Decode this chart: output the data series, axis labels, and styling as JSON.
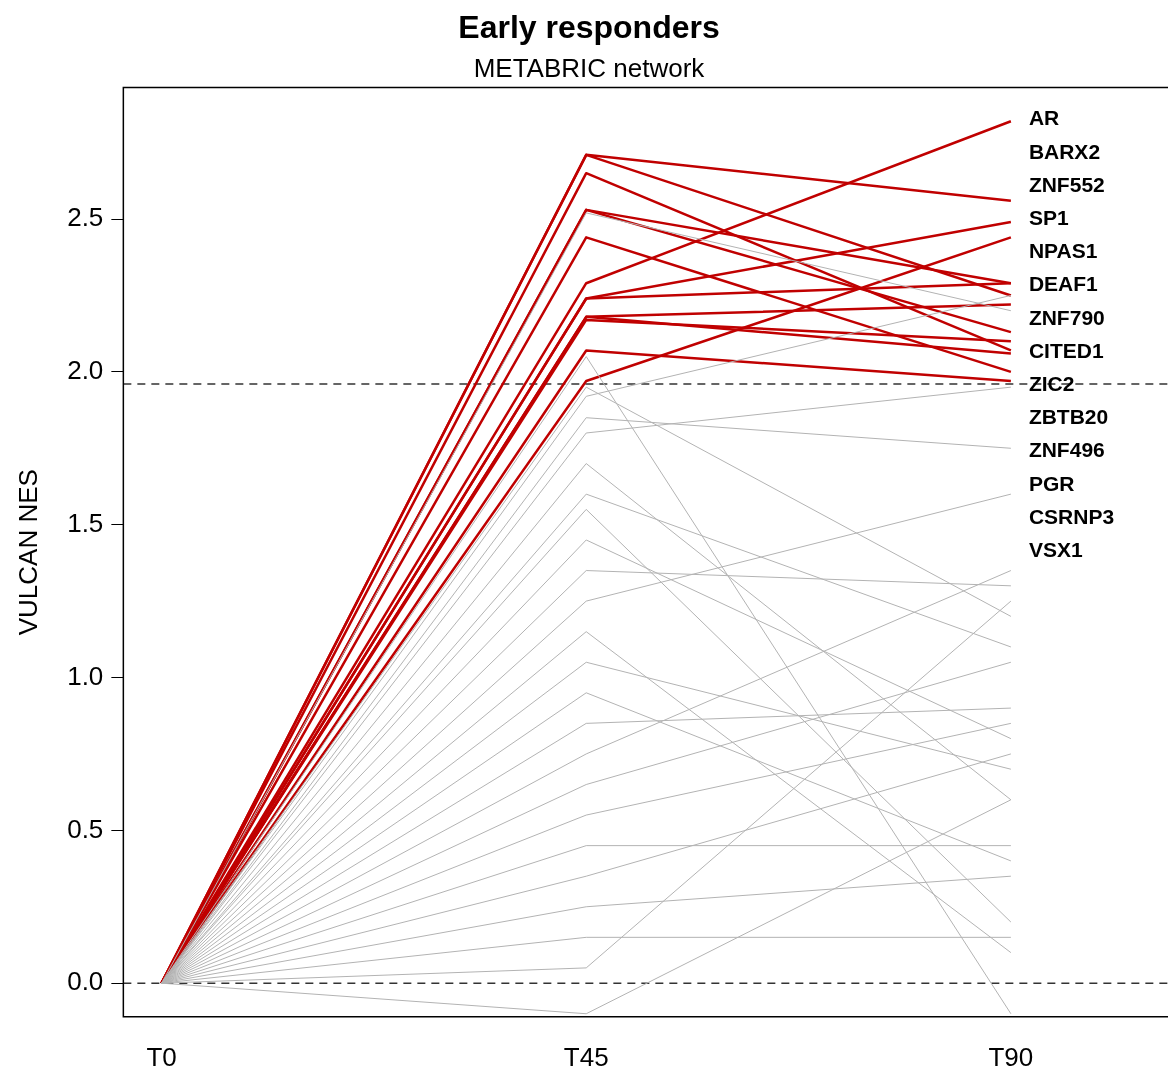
{
  "chart_data": {
    "type": "line",
    "title": "Early responders",
    "subtitle": "METABRIC network",
    "ylabel": "VULCAN NES",
    "categories": [
      "T0",
      "T45",
      "T90"
    ],
    "ylim": [
      -0.11,
      2.93
    ],
    "yticks": [
      {
        "value": 0,
        "label": "0.0"
      },
      0.5,
      {
        "value": 1,
        "label": "1.0"
      },
      1.5,
      {
        "value": 2,
        "label": "2.0"
      },
      2.5
    ],
    "grid": false,
    "marker": "none",
    "line_style": "solid",
    "ref_lines": [
      {
        "axis": "y",
        "value": 1.96,
        "color": "#333333",
        "line_style": "dashed"
      },
      {
        "axis": "y",
        "value": 0,
        "color": "#333333",
        "line_style": "dashed"
      }
    ],
    "annotations": [
      "AR",
      "BARX2",
      "ZNF552",
      "SP1",
      "NPAS1",
      "DEAF1",
      "ZNF790",
      "CITED1",
      "ZIC2",
      "ZBTB20",
      "ZNF496",
      "PGR",
      "CSRNP3",
      "VSX1"
    ],
    "series": [
      {
        "color": "#b3b3b3",
        "values": [
          0,
          1.95,
          1.2
        ]
      },
      {
        "color": "#b3b3b3",
        "values": [
          0,
          1.92,
          2.25
        ]
      },
      {
        "color": "#b3b3b3",
        "values": [
          0,
          1.85,
          1.75
        ]
      },
      {
        "color": "#b3b3b3",
        "values": [
          0,
          1.8,
          1.95
        ]
      },
      {
        "color": "#b3b3b3",
        "values": [
          0,
          1.7,
          0.6
        ]
      },
      {
        "color": "#b3b3b3",
        "values": [
          0,
          1.6,
          1.1
        ]
      },
      {
        "color": "#b3b3b3",
        "values": [
          0,
          1.55,
          0.2
        ]
      },
      {
        "color": "#b3b3b3",
        "values": [
          0,
          1.45,
          0.8
        ]
      },
      {
        "color": "#b3b3b3",
        "values": [
          0,
          1.35,
          1.3
        ]
      },
      {
        "color": "#b3b3b3",
        "values": [
          0,
          1.25,
          1.6
        ]
      },
      {
        "color": "#b3b3b3",
        "values": [
          0,
          1.15,
          0.1
        ]
      },
      {
        "color": "#b3b3b3",
        "values": [
          0,
          1.05,
          0.7
        ]
      },
      {
        "color": "#b3b3b3",
        "values": [
          0,
          0.95,
          0.4
        ]
      },
      {
        "color": "#b3b3b3",
        "values": [
          0,
          0.85,
          0.9
        ]
      },
      {
        "color": "#b3b3b3",
        "values": [
          0,
          0.75,
          1.35
        ]
      },
      {
        "color": "#b3b3b3",
        "values": [
          0,
          0.65,
          1.05
        ]
      },
      {
        "color": "#b3b3b3",
        "values": [
          0,
          0.55,
          0.85
        ]
      },
      {
        "color": "#b3b3b3",
        "values": [
          0,
          0.45,
          0.45
        ]
      },
      {
        "color": "#b3b3b3",
        "values": [
          0,
          0.35,
          0.75
        ]
      },
      {
        "color": "#b3b3b3",
        "values": [
          0,
          0.25,
          0.35
        ]
      },
      {
        "color": "#b3b3b3",
        "values": [
          0,
          0.15,
          0.15
        ]
      },
      {
        "color": "#b3b3b3",
        "values": [
          0,
          0.05,
          1.25
        ]
      },
      {
        "color": "#b3b3b3",
        "values": [
          0,
          -0.1,
          0.6
        ]
      },
      {
        "color": "#b3b3b3",
        "values": [
          0,
          2.52,
          2.2
        ]
      },
      {
        "color": "#b3b3b3",
        "values": [
          0,
          2.05,
          -0.1
        ]
      },
      {
        "color": "#c00000",
        "values": [
          0,
          2.71,
          2.56
        ]
      },
      {
        "color": "#c00000",
        "values": [
          0,
          2.71,
          2.25
        ]
      },
      {
        "color": "#c00000",
        "values": [
          0,
          2.65,
          2.07
        ]
      },
      {
        "color": "#c00000",
        "values": [
          0,
          2.53,
          2.29
        ]
      },
      {
        "color": "#c00000",
        "values": [
          0,
          2.53,
          2.13
        ]
      },
      {
        "color": "#c00000",
        "values": [
          0,
          2.44,
          2.0
        ]
      },
      {
        "color": "#c00000",
        "values": [
          0,
          2.29,
          2.82
        ]
      },
      {
        "color": "#c00000",
        "values": [
          0,
          2.24,
          2.49
        ]
      },
      {
        "color": "#c00000",
        "values": [
          0,
          2.24,
          2.29
        ]
      },
      {
        "color": "#c00000",
        "values": [
          0,
          2.18,
          2.22
        ]
      },
      {
        "color": "#c00000",
        "values": [
          0,
          2.17,
          2.1
        ]
      },
      {
        "color": "#c00000",
        "values": [
          0,
          2.18,
          2.06
        ]
      },
      {
        "color": "#c00000",
        "values": [
          0,
          2.07,
          1.97
        ]
      },
      {
        "color": "#c00000",
        "values": [
          0,
          1.97,
          2.44
        ]
      }
    ]
  }
}
